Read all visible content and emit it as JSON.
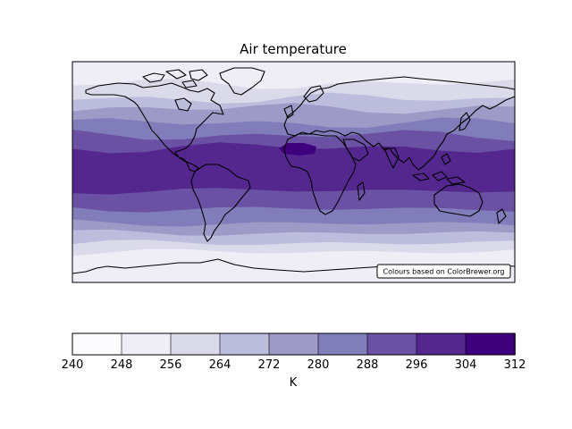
{
  "map": {
    "title": "Air temperature",
    "credit": "Colours based on ColorBrewer.org",
    "projection": "plate-carree",
    "grid": false
  },
  "chart_data": {
    "type": "heatmap",
    "title": "Air temperature",
    "colorbar": {
      "label": "K",
      "ticks": [
        240,
        248,
        256,
        264,
        272,
        280,
        288,
        296,
        304,
        312
      ],
      "tick_labels": [
        "240",
        "248",
        "256",
        "264",
        "272",
        "280",
        "288",
        "296",
        "304",
        "312"
      ],
      "range": [
        240,
        312
      ],
      "colors": [
        "#fcfbfd",
        "#efedf5",
        "#dadaeb",
        "#bcbddc",
        "#9e9ac8",
        "#807dba",
        "#6a51a3",
        "#54278f",
        "#3f007d"
      ]
    },
    "lon_range": [
      -180,
      180
    ],
    "lat_range": [
      -90,
      90
    ],
    "bands": [
      {
        "level_index": 8,
        "value": 308,
        "region": "Sahara"
      },
      {
        "level_index": 7,
        "value": 300,
        "lat_range": [
          -15,
          20
        ],
        "region": "tropics"
      },
      {
        "level_index": 6,
        "value": 292,
        "lat_range": [
          -30,
          30
        ]
      },
      {
        "level_index": 5,
        "value": 284,
        "lat_range": [
          -42,
          40
        ]
      },
      {
        "level_index": 4,
        "value": 276,
        "lat_range": [
          -50,
          52
        ]
      },
      {
        "level_index": 3,
        "value": 268,
        "lat_range": [
          -58,
          60
        ]
      },
      {
        "level_index": 2,
        "value": 260,
        "lat_range": [
          -65,
          72
        ]
      },
      {
        "level_index": 1,
        "value": 252,
        "lat_range": [
          -90,
          90
        ]
      }
    ]
  }
}
